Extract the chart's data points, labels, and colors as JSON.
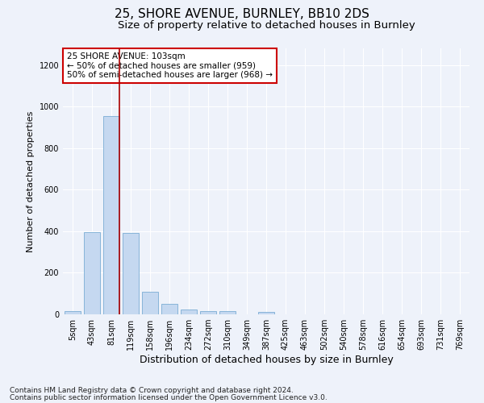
{
  "title_line1": "25, SHORE AVENUE, BURNLEY, BB10 2DS",
  "title_line2": "Size of property relative to detached houses in Burnley",
  "xlabel": "Distribution of detached houses by size in Burnley",
  "ylabel": "Number of detached properties",
  "categories": [
    "5sqm",
    "43sqm",
    "81sqm",
    "119sqm",
    "158sqm",
    "196sqm",
    "234sqm",
    "272sqm",
    "310sqm",
    "349sqm",
    "387sqm",
    "425sqm",
    "463sqm",
    "502sqm",
    "540sqm",
    "578sqm",
    "616sqm",
    "654sqm",
    "693sqm",
    "731sqm",
    "769sqm"
  ],
  "values": [
    15,
    395,
    955,
    390,
    108,
    52,
    25,
    15,
    14,
    0,
    10,
    0,
    0,
    0,
    0,
    0,
    0,
    0,
    0,
    0,
    0
  ],
  "bar_color": "#c5d8f0",
  "bar_edge_color": "#7aadd4",
  "vline_color": "#aa0000",
  "annotation_text": "25 SHORE AVENUE: 103sqm\n← 50% of detached houses are smaller (959)\n50% of semi-detached houses are larger (968) →",
  "annotation_box_color": "#ffffff",
  "annotation_box_edge": "#cc0000",
  "annotation_fontsize": 7.5,
  "ylim": [
    0,
    1280
  ],
  "yticks": [
    0,
    200,
    400,
    600,
    800,
    1000,
    1200
  ],
  "footer_line1": "Contains HM Land Registry data © Crown copyright and database right 2024.",
  "footer_line2": "Contains public sector information licensed under the Open Government Licence v3.0.",
  "background_color": "#eef2fa",
  "grid_color": "#ffffff",
  "title1_fontsize": 11,
  "title2_fontsize": 9.5,
  "xlabel_fontsize": 9,
  "ylabel_fontsize": 8,
  "tick_fontsize": 7,
  "footer_fontsize": 6.5
}
